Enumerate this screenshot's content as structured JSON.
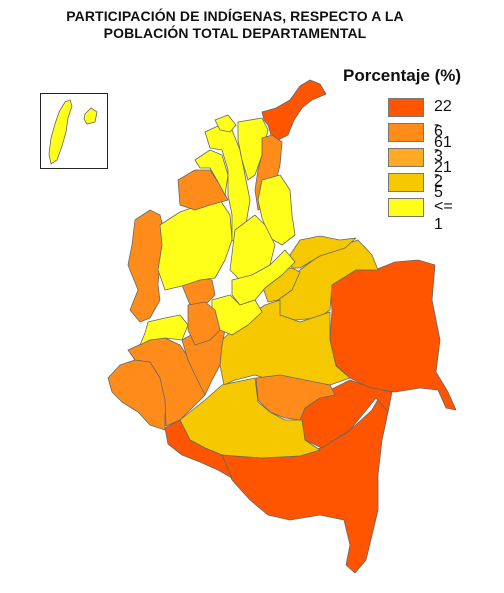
{
  "title_line1": "PARTICIPACIÓN DE INDÍGENAS, RESPECTO A LA",
  "title_line2": "POBLACIÓN TOTAL DEPARTAMENTAL",
  "legend": {
    "title": "Porcentaje (%)",
    "items": [
      {
        "label": "22 - 61",
        "color": "#FF5500"
      },
      {
        "label": "6 - 21",
        "color": "#FF8C1A"
      },
      {
        "label": "3 - 5",
        "color": "#FFAA22"
      },
      {
        "label": "2",
        "color": "#F5C800"
      },
      {
        "label": "<= 1",
        "color": "#FFFF1A"
      }
    ]
  },
  "colors": {
    "border": "#666666",
    "background": "#ffffff"
  }
}
